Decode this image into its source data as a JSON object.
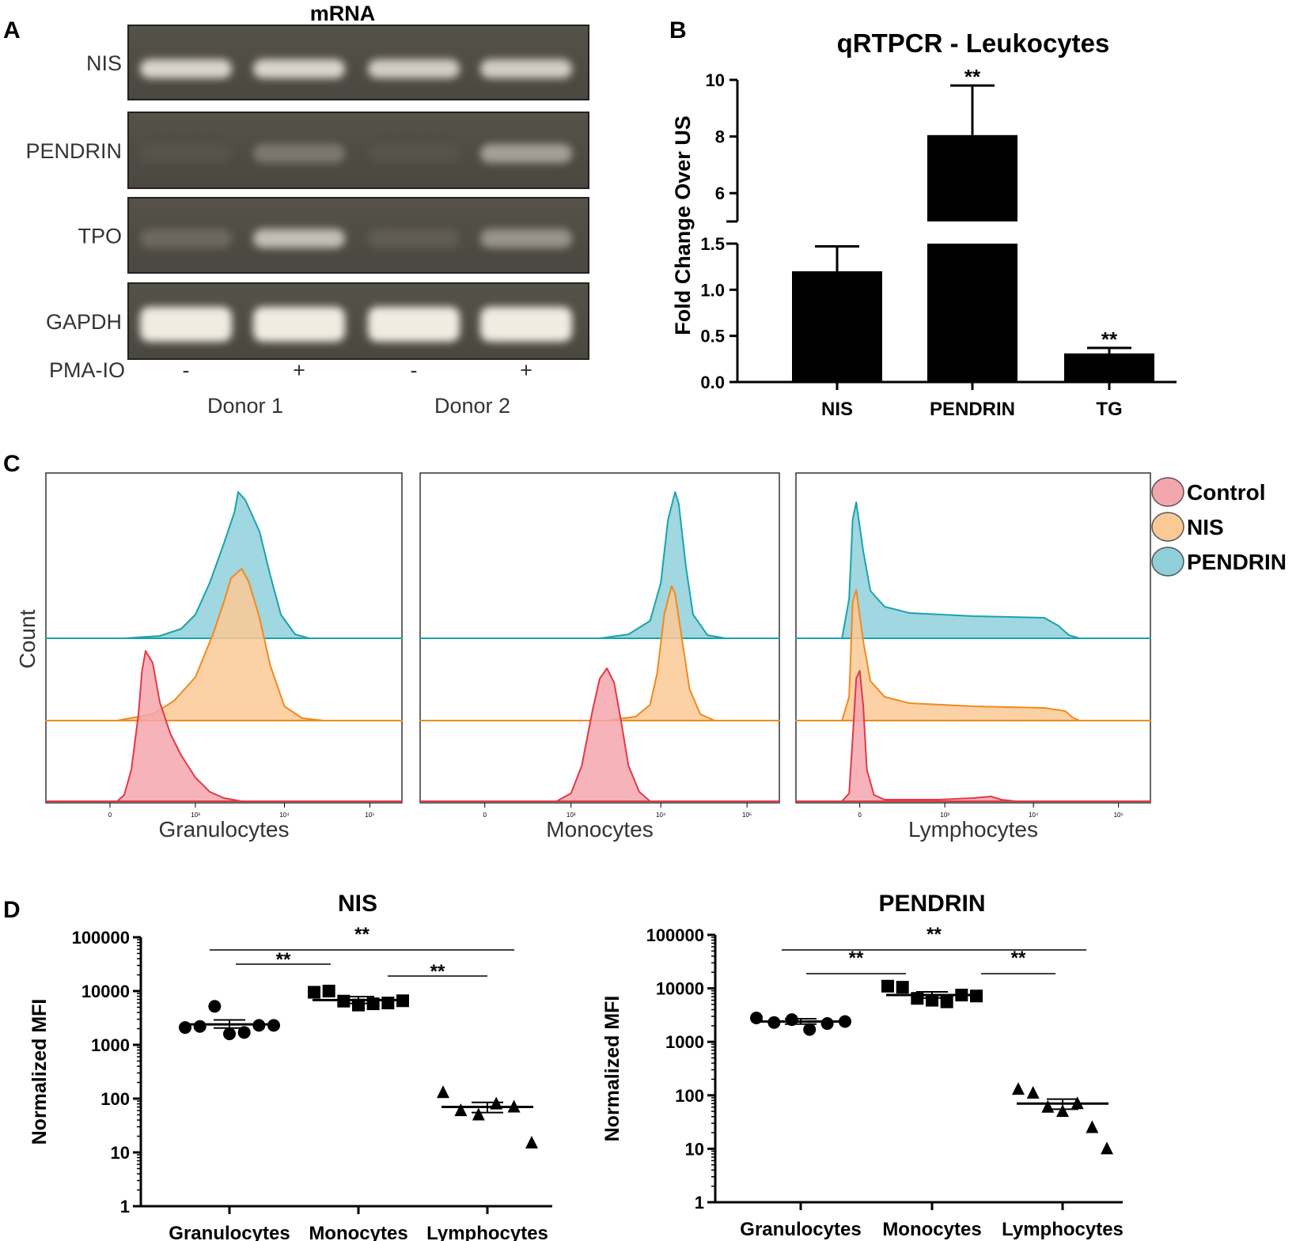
{
  "panels": {
    "a": {
      "letter": "A",
      "title": "mRNA",
      "rows": [
        "NIS",
        "PENDRIN",
        "TPO",
        "GAPDH"
      ],
      "treatment_label": "PMA-IO",
      "lanes": [
        "-",
        "+",
        "-",
        "+"
      ],
      "donors": [
        "Donor 1",
        "Donor 2"
      ],
      "band_intensity": [
        [
          0.85,
          0.85,
          0.8,
          0.8
        ],
        [
          0.05,
          0.35,
          0.05,
          0.55
        ],
        [
          0.25,
          0.7,
          0.15,
          0.5
        ],
        [
          1.0,
          1.0,
          1.0,
          1.0
        ]
      ]
    },
    "b": {
      "letter": "B",
      "sig": [
        "",
        "**",
        "**"
      ]
    },
    "c": {
      "letter": "C",
      "ylabel": "Count",
      "subplots": [
        "Granulocytes",
        "Monocytes",
        "Lymphocytes"
      ],
      "legend": [
        {
          "label": "Control",
          "color": "#f4a6ad"
        },
        {
          "label": "NIS",
          "color": "#fbc995"
        },
        {
          "label": "PENDRIN",
          "color": "#8fd0da"
        }
      ],
      "ticks": [
        "0",
        "10³",
        "10⁴",
        "10⁵"
      ]
    },
    "d": {
      "letter": "D",
      "plots": [
        {
          "title": "NIS",
          "ylabel": "Normalized MFI",
          "sig": [
            "**",
            "**",
            "**"
          ]
        },
        {
          "title": "PENDRIN",
          "ylabel": "Normalized MFI",
          "sig": [
            "**",
            "**",
            "**"
          ]
        }
      ]
    }
  },
  "chart_data": [
    {
      "type": "bar",
      "title": "qRTPCR -  Leukocytes",
      "ylabel": "Fold Change Over US",
      "categories": [
        "NIS",
        "PENDRIN",
        "TG"
      ],
      "values": [
        1.2,
        8.05,
        0.31
      ],
      "errors": [
        0.27,
        1.75,
        0.06
      ],
      "ylim": [
        0,
        10
      ],
      "axis_break": [
        1.5,
        5
      ],
      "lower_ticks": [
        "0.0",
        "0.5",
        "1.0",
        "1.5"
      ],
      "upper_ticks": [
        "6",
        "8",
        "10"
      ]
    },
    {
      "type": "scatter",
      "title": "NIS",
      "ylabel": "Normalized MFI",
      "scale": "log",
      "ylim": [
        1,
        100000
      ],
      "yticks": [
        "1",
        "10",
        "100",
        "1000",
        "10000",
        "100000"
      ],
      "categories": [
        "Granulocytes",
        "Monocytes",
        "Lymphocytes"
      ],
      "markers": [
        "circle",
        "square",
        "triangle"
      ],
      "points": [
        [
          2100,
          2200,
          5200,
          1600,
          1700,
          2300,
          2300
        ],
        [
          9500,
          10000,
          6500,
          5500,
          5800,
          6000,
          6600
        ],
        [
          130,
          60,
          50,
          80,
          70,
          15
        ]
      ],
      "means": [
        2400,
        6800,
        70
      ],
      "sem_low": [
        2050,
        5900,
        55
      ],
      "sem_high": [
        2900,
        7900,
        85
      ]
    },
    {
      "type": "scatter",
      "title": "PENDRIN",
      "ylabel": "Normalized MFI",
      "scale": "log",
      "ylim": [
        1,
        100000
      ],
      "yticks": [
        "1",
        "10",
        "100",
        "1000",
        "10000",
        "100000"
      ],
      "categories": [
        "Granulocytes",
        "Monocytes",
        "Lymphocytes"
      ],
      "markers": [
        "circle",
        "square",
        "triangle"
      ],
      "points": [
        [
          2800,
          2300,
          2600,
          1700,
          2200,
          2400
        ],
        [
          11000,
          10500,
          6500,
          6000,
          5600,
          7500,
          7200
        ],
        [
          130,
          110,
          60,
          50,
          70,
          25,
          10
        ]
      ],
      "means": [
        2400,
        7500,
        70
      ],
      "sem_low": [
        2150,
        6600,
        55
      ],
      "sem_high": [
        2700,
        8600,
        85
      ]
    }
  ]
}
